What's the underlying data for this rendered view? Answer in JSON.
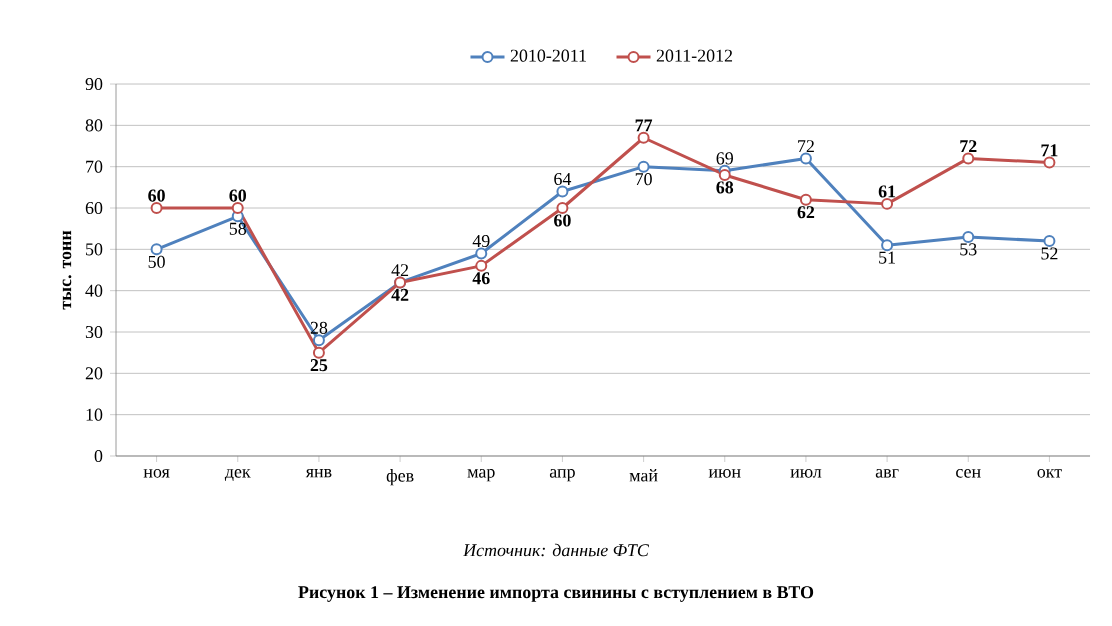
{
  "chart_data": {
    "type": "line",
    "ylabel": "тыс. тонн",
    "categories": [
      "ноя",
      "дек",
      "янв",
      "фев",
      "мар",
      "апр",
      "май",
      "июн",
      "июл",
      "авг",
      "сен",
      "окт"
    ],
    "series": [
      {
        "name": "2010-2011",
        "color": "#4f81bd",
        "values": [
          50,
          58,
          28,
          42,
          49,
          64,
          70,
          69,
          72,
          51,
          53,
          52
        ]
      },
      {
        "name": "2011-2012",
        "color": "#c0504d",
        "values": [
          60,
          60,
          25,
          42,
          46,
          60,
          77,
          68,
          62,
          61,
          72,
          71
        ]
      }
    ],
    "ylim": [
      0,
      90
    ],
    "yticks": [
      0,
      10,
      20,
      30,
      40,
      50,
      60,
      70,
      80,
      90
    ],
    "grid": "y",
    "legend": "top",
    "marker": "circle",
    "line_style": "solid",
    "data_labels": true,
    "annotations": [
      "Источник: данные ФТС",
      "Рисунок 1 – Изменение импорта свинины с вступлением в ВТО"
    ]
  }
}
